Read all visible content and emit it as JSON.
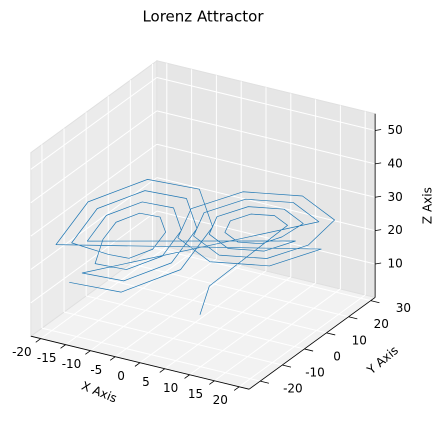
{
  "chart_data": {
    "type": "line3d",
    "title": "Lorenz Attractor",
    "xlabel": "X Axis",
    "ylabel": "Y Axis",
    "zlabel": "Z Axis",
    "xlim": [
      -22,
      22
    ],
    "ylim": [
      -25,
      32
    ],
    "zlim": [
      0,
      55
    ],
    "xticks": [
      -20,
      -15,
      -10,
      -5,
      0,
      5,
      10,
      15,
      20
    ],
    "yticks": [
      -20,
      -10,
      0,
      10,
      20,
      30
    ],
    "zticks": [
      10,
      20,
      30,
      40,
      50
    ],
    "grid": true,
    "series": [
      {
        "color": "#1f77b4",
        "x": [
          0.5,
          1.5,
          12.5,
          11.3,
          8.5,
          5.7,
          4.5,
          5.7,
          8.5,
          11.3,
          14.5,
          12.8,
          8.5,
          4.2,
          2.5,
          4.2,
          8.5,
          12.8,
          -14.5,
          -12.8,
          -8.5,
          -4.2,
          -2.5,
          -4.2,
          -8.5,
          -12.8,
          -12.5,
          -11.3,
          -8.5,
          -5.7,
          -4.5,
          -5.7,
          -8.5,
          -11.3,
          -16.5,
          -14.2,
          -8.5,
          -2.8,
          -0.5,
          -2.8,
          -8.5,
          -14.2,
          16.5,
          14.2,
          8.5,
          2.8,
          0.5,
          2.8,
          8.5,
          14.2,
          18.5,
          15.6,
          8.5,
          1.4,
          -1.5,
          1.4,
          8.5,
          15.6,
          -18.5,
          -15.6,
          -8.5,
          -1.4,
          1.5,
          -1.4,
          -8.5,
          -15.6
        ],
        "y": [
          1,
          3,
          13.7,
          10.5,
          6.1,
          3.1,
          3.3,
          6.5,
          10.9,
          13.9,
          16.3,
          11.5,
          4.9,
          0.4,
          0.7,
          5.5,
          12.1,
          16.6,
          -16.3,
          -11.5,
          -4.9,
          -0.4,
          -0.7,
          -5.5,
          -12.1,
          -16.6,
          -13.7,
          -10.5,
          -6.1,
          -3.1,
          -3.3,
          -6.5,
          -10.9,
          -13.9,
          -18.9,
          -12.5,
          -3.7,
          2.3,
          1.9,
          -4.5,
          -13.3,
          -19.3,
          18.9,
          12.5,
          3.7,
          -2.3,
          -1.9,
          4.5,
          13.3,
          19.3,
          21.5,
          13.5,
          2.5,
          -5,
          -4.5,
          3.5,
          14.5,
          22,
          -21.5,
          -13.5,
          -2.5,
          5,
          4.5,
          -3.5,
          -14.5,
          -22
        ],
        "z": [
          2,
          10,
          27,
          31,
          32.6,
          31,
          27,
          23,
          21.4,
          23,
          27,
          33,
          35.4,
          33,
          27,
          21,
          18.6,
          21,
          27,
          33,
          35.4,
          33,
          27,
          21,
          18.6,
          21,
          27,
          31,
          32.6,
          31,
          27,
          23,
          21.4,
          23,
          27,
          35,
          38.2,
          35,
          27,
          19,
          15.8,
          19,
          27,
          35,
          38.2,
          35,
          27,
          19,
          15.8,
          19,
          27,
          37,
          41,
          37,
          27,
          17,
          13,
          17,
          27,
          37,
          41,
          37,
          27,
          17,
          13,
          17
        ]
      }
    ]
  }
}
